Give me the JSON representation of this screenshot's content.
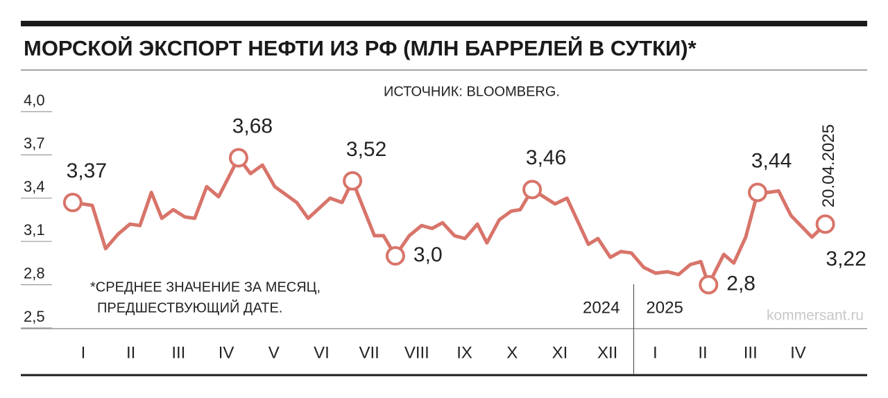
{
  "chart_data": {
    "type": "line",
    "title": "МОРСКОЙ ЭКСПОРТ НЕФТИ ИЗ РФ (МЛН БАРРЕЛЕЙ В СУТКИ)*",
    "source": "ИСТОЧНИК: BLOOMBERG.",
    "note": [
      "*СРЕДНЕЕ ЗНАЧЕНИЕ ЗА МЕСЯЦ,",
      "ПРЕДШЕСТВУЮЩИЙ ДАТЕ."
    ],
    "years": [
      {
        "x": 12.05,
        "labels": [
          "2024",
          "2025"
        ]
      }
    ],
    "date_label": "20.04.2025",
    "credit": "kommersant.ru",
    "color": "#d8746a",
    "x": [
      0.28,
      0.69,
      0.97,
      1.23,
      1.48,
      1.69,
      1.93,
      2.15,
      2.39,
      2.63,
      2.84,
      3.09,
      3.34,
      3.76,
      4.01,
      4.26,
      4.52,
      4.98,
      5.22,
      5.68,
      5.93,
      6.15,
      6.61,
      6.8,
      7.05,
      7.34,
      7.6,
      7.82,
      8.04,
      8.29,
      8.51,
      8.77,
      8.97,
      9.23,
      9.48,
      9.67,
      9.92,
      10.4,
      10.65,
      11.1,
      11.3,
      11.56,
      11.78,
      12.0,
      12.26,
      12.51,
      12.76,
      12.99,
      13.24,
      13.46,
      13.62,
      13.94,
      14.15,
      14.4,
      14.65,
      14.87,
      15.09,
      15.35,
      15.79,
      16.07
    ],
    "values": [
      3.37,
      3.35,
      3.05,
      3.15,
      3.22,
      3.21,
      3.44,
      3.26,
      3.32,
      3.27,
      3.26,
      3.48,
      3.41,
      3.68,
      3.57,
      3.63,
      3.48,
      3.37,
      3.26,
      3.4,
      3.37,
      3.52,
      3.14,
      3.14,
      3.0,
      3.14,
      3.21,
      3.19,
      3.23,
      3.14,
      3.12,
      3.22,
      3.09,
      3.25,
      3.31,
      3.32,
      3.46,
      3.36,
      3.4,
      3.08,
      3.12,
      2.99,
      3.03,
      3.02,
      2.92,
      2.88,
      2.89,
      2.87,
      2.94,
      2.96,
      2.8,
      3.01,
      2.95,
      3.13,
      3.44,
      3.44,
      3.45,
      3.28,
      3.13,
      3.22
    ],
    "value_labels": [
      "3,37",
      null,
      null,
      null,
      null,
      null,
      null,
      null,
      null,
      null,
      null,
      null,
      null,
      "3,68",
      null,
      null,
      null,
      null,
      null,
      null,
      null,
      "3,52",
      null,
      null,
      "3,0",
      null,
      null,
      null,
      null,
      null,
      null,
      null,
      null,
      null,
      null,
      null,
      "3,46",
      null,
      null,
      null,
      null,
      null,
      null,
      null,
      null,
      null,
      null,
      null,
      null,
      null,
      "2,8",
      null,
      null,
      null,
      "3,44",
      null,
      null,
      null,
      null,
      "3,22"
    ],
    "xlim": [
      0,
      16.5
    ],
    "xticks": [
      {
        "value": 0.5,
        "label": "I"
      },
      {
        "value": 1.5,
        "label": "II"
      },
      {
        "value": 2.5,
        "label": "III"
      },
      {
        "value": 3.5,
        "label": "IV"
      },
      {
        "value": 4.5,
        "label": "V"
      },
      {
        "value": 5.5,
        "label": "VI"
      },
      {
        "value": 6.5,
        "label": "VII"
      },
      {
        "value": 7.5,
        "label": "VIII"
      },
      {
        "value": 8.5,
        "label": "IX"
      },
      {
        "value": 9.5,
        "label": "X"
      },
      {
        "value": 10.5,
        "label": "XI"
      },
      {
        "value": 11.5,
        "label": "XII"
      },
      {
        "value": 12.5,
        "label": "I"
      },
      {
        "value": 13.5,
        "label": "II"
      },
      {
        "value": 14.5,
        "label": "III"
      },
      {
        "value": 15.5,
        "label": "IV"
      }
    ],
    "ylim": [
      2.5,
      4.0
    ],
    "yticks": [
      {
        "value": 2.5,
        "label": "2,5"
      },
      {
        "value": 2.8,
        "label": "2,8"
      },
      {
        "value": 3.1,
        "label": "3,1"
      },
      {
        "value": 3.4,
        "label": "3,4"
      },
      {
        "value": 3.7,
        "label": "3,7"
      },
      {
        "value": 4.0,
        "label": "4,0"
      }
    ]
  }
}
